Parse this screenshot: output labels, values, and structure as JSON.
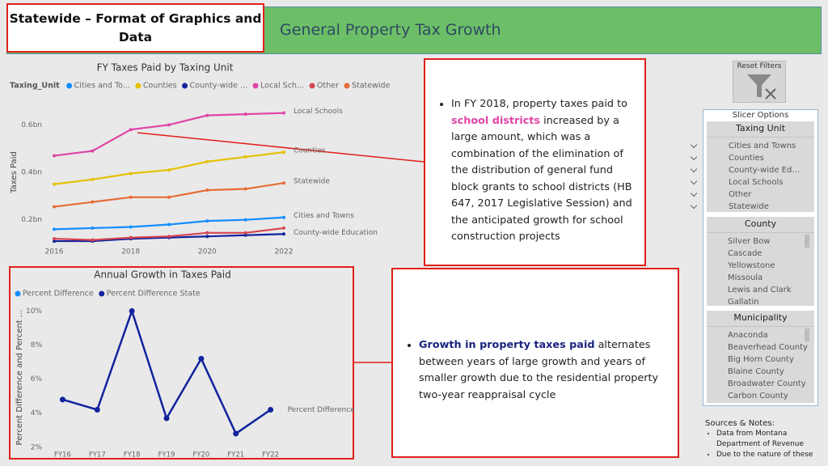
{
  "header": {
    "title": "Statewide – Format of Graphics and Data",
    "banner": "General Property Tax Growth"
  },
  "chart_data": [
    {
      "type": "line",
      "title": "FY Taxes Paid by Taxing Unit",
      "legend_title": "Taxing_Unit",
      "x": [
        2016,
        2017,
        2018,
        2019,
        2020,
        2021,
        2022
      ],
      "xlim": [
        2016,
        2022
      ],
      "xticks": [
        2016,
        2018,
        2020,
        2022
      ],
      "ylabel": "Taxes Paid",
      "ylim": [
        0.1,
        0.7
      ],
      "yticks": [
        {
          "value": 0.2,
          "label": "0.2bn"
        },
        {
          "value": 0.4,
          "label": "0.4bn"
        },
        {
          "value": 0.6,
          "label": "0.6bn"
        }
      ],
      "series": [
        {
          "name": "Cities and To...",
          "color": "#118dff",
          "values": [
            0.16,
            0.165,
            0.17,
            0.18,
            0.195,
            0.2,
            0.21
          ],
          "end_label": "Cities and Towns"
        },
        {
          "name": "Counties",
          "color": "#e6c000",
          "values": [
            0.35,
            0.37,
            0.395,
            0.41,
            0.445,
            0.465,
            0.485
          ],
          "end_label": "Counties"
        },
        {
          "name": "County-wide ...",
          "color": "#12239e",
          "values": [
            0.11,
            0.11,
            0.12,
            0.125,
            0.13,
            0.135,
            0.14
          ],
          "end_label": "County-wide Education"
        },
        {
          "name": "Local Sch...",
          "color": "#e044a7",
          "values": [
            0.47,
            0.49,
            0.58,
            0.6,
            0.64,
            0.645,
            0.65
          ],
          "end_label": "Local Schools"
        },
        {
          "name": "Other",
          "color": "#d64550",
          "values": [
            0.12,
            0.115,
            0.125,
            0.13,
            0.145,
            0.145,
            0.165
          ]
        },
        {
          "name": "Statewide",
          "color": "#e66c37",
          "values": [
            0.255,
            0.275,
            0.295,
            0.295,
            0.325,
            0.33,
            0.355
          ],
          "end_label": "Statewide"
        }
      ]
    },
    {
      "type": "line",
      "title": "Annual Growth in Taxes Paid",
      "categories": [
        "FY16",
        "FY17",
        "FY18",
        "FY19",
        "FY20",
        "FY21",
        "FY22"
      ],
      "ylabel": "Percent Difference and Percent ...",
      "ylim": [
        1.8,
        10.4
      ],
      "yticks": [
        {
          "value": 2,
          "label": "2%"
        },
        {
          "value": 4,
          "label": "4%"
        },
        {
          "value": 6,
          "label": "6%"
        },
        {
          "value": 8,
          "label": "8%"
        },
        {
          "value": 10,
          "label": "10%"
        }
      ],
      "legend": [
        {
          "name": "Percent Difference",
          "color": "#118dff"
        },
        {
          "name": "Percent Difference State",
          "color": "#12239e"
        }
      ],
      "series": [
        {
          "color": "#12239e",
          "values": [
            4.8,
            4.2,
            10.0,
            3.7,
            7.2,
            2.8,
            4.2
          ],
          "end_label": "Percent Difference"
        }
      ]
    }
  ],
  "callouts": [
    {
      "before": "In FY 2018, property taxes paid to ",
      "highlight": "school districts",
      "after": " increased by a large amount, which was a combination of the elimination of the distribution of general fund block grants to school districts (HB 647, 2017 Legislative Session) and the anticipated growth for school construction projects"
    },
    {
      "highlight": "Growth in property taxes paid",
      "after": " alternates between years of large growth and years of smaller growth due to the residential property two-year reappraisal cycle"
    }
  ],
  "reset_filters": "Reset Filters",
  "slicer": {
    "title": "Slicer Options",
    "groups": [
      {
        "title": "Taxing Unit",
        "items": [
          "Cities and Towns",
          "Counties",
          "County-wide Ed...",
          "Local Schools",
          "Other",
          "Statewide"
        ]
      },
      {
        "title": "County",
        "items": [
          "Silver Bow",
          "Cascade",
          "Yellowstone",
          "Missoula",
          "Lewis and Clark",
          "Gallatin"
        ]
      },
      {
        "title": "Municipality",
        "items": [
          "Anaconda",
          "Beaverhead County",
          "Big Horn County",
          "Blaine County",
          "Broadwater County",
          "Carbon County"
        ]
      }
    ]
  },
  "sources": {
    "title": "Sources & Notes:",
    "items": [
      "Data from Montana Department of Revenue",
      "Due to the nature of these"
    ]
  }
}
